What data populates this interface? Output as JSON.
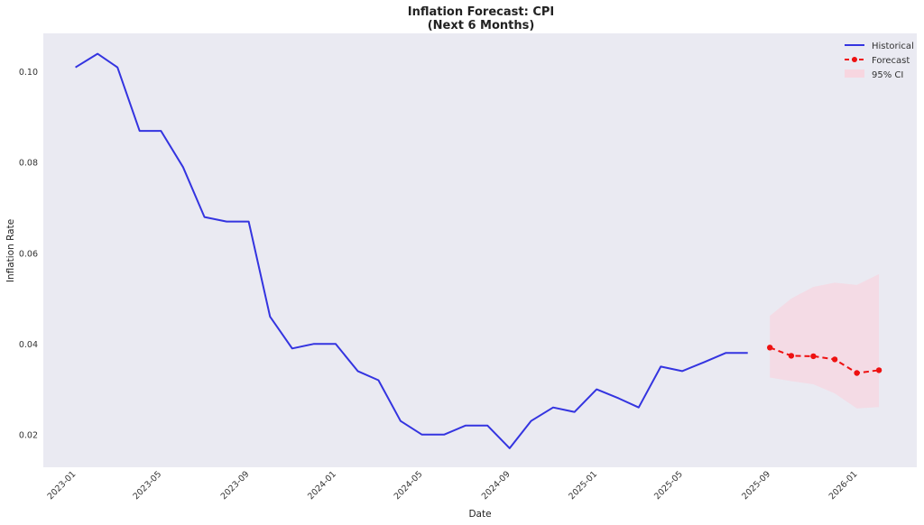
{
  "chart_data": {
    "type": "line",
    "title_lines": [
      "Inflation Forecast: CPI",
      "(Next 6 Months)"
    ],
    "xlabel": "Date",
    "ylabel": "Inflation Rate",
    "grid": false,
    "legend_position": "top-right",
    "x_range": [
      "2022-11-16",
      "2026-03-25"
    ],
    "ylim": [
      0.0128,
      0.1085
    ],
    "x_ticks": [
      "2023-01",
      "2023-05",
      "2023-09",
      "2024-01",
      "2024-05",
      "2024-09",
      "2025-01",
      "2025-05",
      "2025-09",
      "2026-01"
    ],
    "y_ticks": [
      0.02,
      0.04,
      0.06,
      0.08,
      0.1
    ],
    "y_tick_labels": [
      "0.02",
      "0.04",
      "0.06",
      "0.08",
      "0.10"
    ],
    "colors": {
      "plot_background": "#eaeaf2",
      "historical": "#3434e0",
      "forecast": "#ee1111",
      "ci_fill": "#f7d6e0"
    },
    "series": [
      {
        "name": "Historical",
        "style": "solid",
        "x": [
          "2022-12-31",
          "2023-01-31",
          "2023-02-28",
          "2023-03-31",
          "2023-04-30",
          "2023-05-31",
          "2023-06-30",
          "2023-07-31",
          "2023-08-31",
          "2023-09-30",
          "2023-10-31",
          "2023-11-30",
          "2023-12-31",
          "2024-01-31",
          "2024-02-29",
          "2024-03-31",
          "2024-04-30",
          "2024-05-31",
          "2024-06-30",
          "2024-07-31",
          "2024-08-31",
          "2024-09-30",
          "2024-10-31",
          "2024-11-30",
          "2024-12-31",
          "2025-01-31",
          "2025-02-28",
          "2025-03-31",
          "2025-04-30",
          "2025-05-31",
          "2025-06-30",
          "2025-07-31"
        ],
        "y": [
          0.101,
          0.104,
          0.101,
          0.087,
          0.087,
          0.079,
          0.068,
          0.067,
          0.067,
          0.046,
          0.039,
          0.04,
          0.04,
          0.034,
          0.032,
          0.023,
          0.02,
          0.02,
          0.022,
          0.022,
          0.017,
          0.023,
          0.026,
          0.025,
          0.03,
          0.028,
          0.026,
          0.035,
          0.034,
          0.036,
          0.038,
          0.038
        ]
      },
      {
        "name": "Forecast",
        "style": "dashed",
        "marker": "circle",
        "x": [
          "2025-08-31",
          "2025-09-30",
          "2025-10-31",
          "2025-11-30",
          "2025-12-31",
          "2026-01-31"
        ],
        "y": [
          0.0392,
          0.0374,
          0.0373,
          0.0366,
          0.0336,
          0.0342
        ]
      },
      {
        "name": "95% CI",
        "style": "band",
        "x": [
          "2025-08-31",
          "2025-09-30",
          "2025-10-31",
          "2025-11-30",
          "2025-12-31",
          "2026-01-31"
        ],
        "lower": [
          0.0326,
          0.0318,
          0.0311,
          0.0291,
          0.0258,
          0.0261
        ],
        "upper": [
          0.0462,
          0.05,
          0.0526,
          0.0535,
          0.053,
          0.0554
        ]
      }
    ]
  }
}
